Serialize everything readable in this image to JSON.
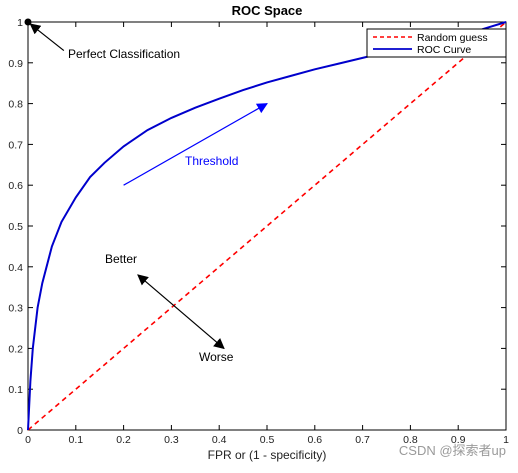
{
  "chart_data": {
    "type": "line",
    "title": "ROC Space",
    "xlabel": "FPR or (1 - specificity)",
    "ylabel": "",
    "xlim": [
      0,
      1
    ],
    "ylim": [
      0,
      1
    ],
    "x_ticks": [
      0,
      0.1,
      0.2,
      0.3,
      0.4,
      0.5,
      0.6,
      0.7,
      0.8,
      0.9,
      1
    ],
    "x_tick_labels": [
      "0",
      "0.1",
      "0.2",
      "0.3",
      "0.4",
      "0.5",
      "0.6",
      "0.7",
      "0.8",
      "0.9",
      "1"
    ],
    "y_ticks": [
      0,
      0.1,
      0.2,
      0.3,
      0.4,
      0.5,
      0.6,
      0.7,
      0.8,
      0.9,
      1
    ],
    "y_tick_labels": [
      "0",
      "0.1",
      "0.2",
      "0.3",
      "0.4",
      "0.5",
      "0.6",
      "0.7",
      "0.8",
      "0.9",
      "1"
    ],
    "grid": false,
    "legend_position": "top-right",
    "series": [
      {
        "name": "Random guess",
        "color": "#ff0000",
        "style": "dashed",
        "x": [
          0,
          1
        ],
        "y": [
          0,
          1
        ]
      },
      {
        "name": "ROC Curve",
        "color": "#0000cc",
        "style": "solid",
        "x": [
          0,
          0.005,
          0.01,
          0.02,
          0.03,
          0.05,
          0.07,
          0.1,
          0.13,
          0.16,
          0.2,
          0.25,
          0.3,
          0.35,
          0.4,
          0.45,
          0.5,
          0.55,
          0.6,
          0.65,
          0.7,
          0.75,
          0.8,
          0.85,
          0.9,
          0.95,
          1
        ],
        "y": [
          0,
          0.12,
          0.2,
          0.3,
          0.36,
          0.45,
          0.51,
          0.57,
          0.62,
          0.655,
          0.695,
          0.735,
          0.765,
          0.79,
          0.812,
          0.833,
          0.852,
          0.868,
          0.884,
          0.898,
          0.912,
          0.926,
          0.94,
          0.953,
          0.966,
          0.982,
          1
        ]
      }
    ],
    "points": [
      {
        "label": "Perfect Classification",
        "x": 0,
        "y": 1,
        "color": "#000000"
      }
    ],
    "annotations": [
      {
        "text": "Perfect Classification",
        "color": "#000000"
      },
      {
        "text": "Threshold",
        "color": "#0000ff"
      },
      {
        "text": "Better",
        "color": "#000000"
      },
      {
        "text": "Worse",
        "color": "#000000"
      }
    ],
    "arrows": [
      {
        "name": "threshold-arrow",
        "from": [
          0.2,
          0.6
        ],
        "to": [
          0.5,
          0.8
        ],
        "color": "#0000ff",
        "double": false
      },
      {
        "name": "better-worse-arrow",
        "from": [
          0.23,
          0.38
        ],
        "to": [
          0.41,
          0.2
        ],
        "color": "#000000",
        "double": true
      },
      {
        "name": "perfect-classification-arrow",
        "from": [
          0.075,
          0.93
        ],
        "to": [
          0.005,
          0.995
        ],
        "color": "#000000",
        "double": false
      }
    ],
    "watermark": "CSDN @探索者up"
  }
}
